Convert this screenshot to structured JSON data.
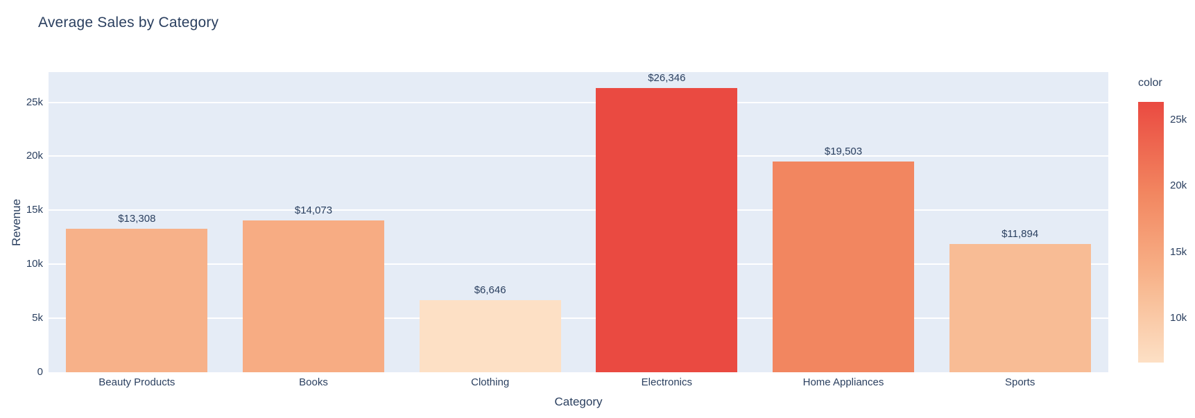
{
  "chart_data": {
    "type": "bar",
    "title": "Average Sales by Category",
    "xlabel": "Category",
    "ylabel": "Revenue",
    "categories": [
      "Beauty Products",
      "Books",
      "Clothing",
      "Electronics",
      "Home Appliances",
      "Sports"
    ],
    "values": [
      13308,
      14073,
      6646,
      26346,
      19503,
      11894
    ],
    "value_labels": [
      "$13,308",
      "$14,073",
      "$6,646",
      "$26,346",
      "$19,503",
      "$11,894"
    ],
    "bar_colors": [
      "#f7b189",
      "#f7ac83",
      "#fde0c5",
      "#ea4a41",
      "#f28660",
      "#f8bc95"
    ],
    "ylim": [
      0,
      27800
    ],
    "yticks": [
      {
        "value": 0,
        "label": "0"
      },
      {
        "value": 5000,
        "label": "5k"
      },
      {
        "value": 10000,
        "label": "10k"
      },
      {
        "value": 15000,
        "label": "15k"
      },
      {
        "value": 20000,
        "label": "20k"
      },
      {
        "value": 25000,
        "label": "25k"
      }
    ],
    "grid": true,
    "colorbar": {
      "title": "color",
      "min": 6646,
      "max": 26346,
      "ticks": [
        {
          "value": 25000,
          "label": "25k"
        },
        {
          "value": 20000,
          "label": "20k"
        },
        {
          "value": 15000,
          "label": "15k"
        },
        {
          "value": 10000,
          "label": "10k"
        }
      ],
      "gradient": [
        {
          "t": 0,
          "color": "#fde0c5"
        },
        {
          "t": 0.27,
          "color": "#f8bc95"
        },
        {
          "t": 0.34,
          "color": "#f7b189"
        },
        {
          "t": 0.38,
          "color": "#f7ac83"
        },
        {
          "t": 0.65,
          "color": "#f28660"
        },
        {
          "t": 1,
          "color": "#ea4a41"
        }
      ]
    },
    "colors": {
      "page_background": "#ffffff",
      "plot_background": "#e5ecf6",
      "gridline": "#ffffff",
      "font": "#2a3f5f"
    }
  }
}
